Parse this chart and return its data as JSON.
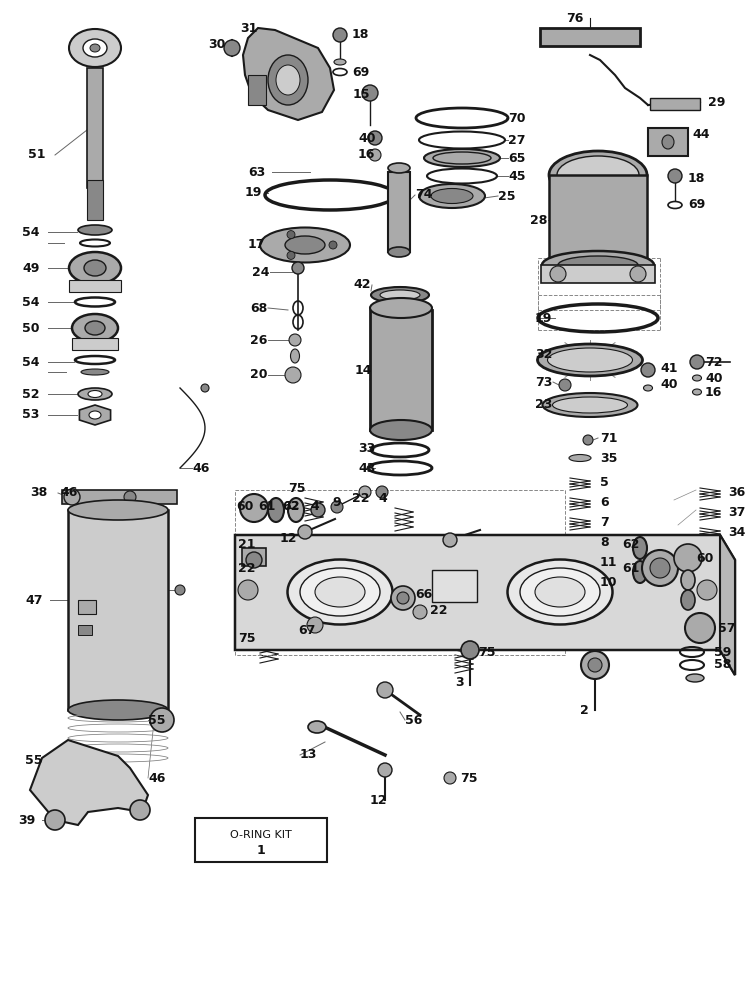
{
  "bg_color": "#f0f0f0",
  "line_color": "#1a1a1a",
  "text_color": "#111111",
  "fig_width": 7.5,
  "fig_height": 9.94,
  "dpi": 100
}
